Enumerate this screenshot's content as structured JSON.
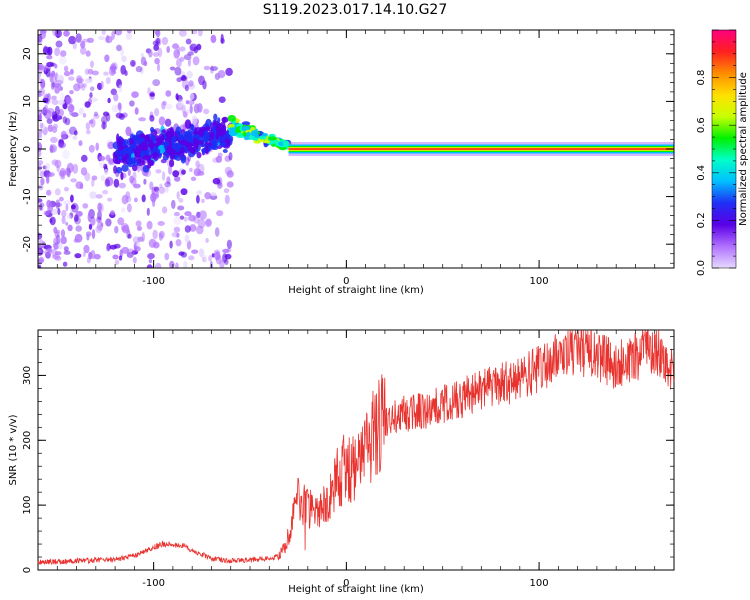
{
  "figure": {
    "title": "S119.2023.017.14.10.G27"
  },
  "chart_data": [
    {
      "type": "heatmap",
      "xlabel": "Height of straight line (km)",
      "ylabel": "Frequency (Hz)",
      "xlim": [
        -160,
        170
      ],
      "ylim": [
        -25,
        25
      ],
      "xticks": [
        -100,
        0,
        100
      ],
      "yticks": [
        -20,
        -10,
        0,
        10,
        20
      ],
      "grid": false,
      "colorbar": {
        "label": "Normalized spectral amplitude",
        "range": [
          0,
          1
        ],
        "ticks": [
          "0.0",
          "0.2",
          "0.4",
          "0.6",
          "0.8"
        ],
        "colormap": [
          "#e6d9ff",
          "#b070ff",
          "#5a00e6",
          "#1f2ff5",
          "#00bfff",
          "#00ffc8",
          "#00f000",
          "#c8ff00",
          "#ffe000",
          "#ff8c00",
          "#ff2020",
          "#ff0080"
        ]
      },
      "features": [
        {
          "x_range": [
            -160,
            -60
          ],
          "frequency_range": [
            -25,
            25
          ],
          "amplitude": 0.1,
          "pattern": "scattered noise"
        },
        {
          "x_range": [
            -120,
            -60
          ],
          "frequency_range": [
            -5,
            10
          ],
          "amplitude": 0.2,
          "pattern": "band rising with height"
        },
        {
          "x_range": [
            -60,
            -30
          ],
          "frequency_range": [
            0,
            8
          ],
          "amplitude": 0.4,
          "pattern": "band converging to 0 Hz"
        },
        {
          "x_range": [
            -30,
            170
          ],
          "frequency_range": [
            -1,
            1
          ],
          "amplitude": 0.9,
          "pattern": "narrow line at 0 Hz"
        }
      ]
    },
    {
      "type": "line",
      "xlabel": "Height of straight line (km)",
      "ylabel": "SNR (10 * v/v)",
      "xlim": [
        -160,
        170
      ],
      "ylim": [
        0,
        370
      ],
      "xticks": [
        -100,
        0,
        100
      ],
      "yticks": [
        0,
        100,
        200,
        300
      ],
      "grid": false,
      "series": [
        {
          "color": "#e8322e",
          "x": [
            -160,
            -140,
            -120,
            -110,
            -100,
            -95,
            -85,
            -80,
            -70,
            -60,
            -50,
            -40,
            -35,
            -30,
            -25,
            -20,
            -15,
            -10,
            -5,
            0,
            5,
            10,
            15,
            20,
            30,
            40,
            50,
            60,
            70,
            80,
            90,
            100,
            110,
            120,
            130,
            140,
            150,
            160,
            165,
            170
          ],
          "values": [
            12,
            14,
            16,
            22,
            35,
            40,
            38,
            30,
            18,
            14,
            15,
            18,
            20,
            50,
            110,
            95,
            85,
            110,
            140,
            160,
            150,
            190,
            210,
            230,
            240,
            245,
            255,
            265,
            280,
            285,
            295,
            310,
            330,
            340,
            330,
            315,
            330,
            340,
            330,
            300
          ]
        }
      ]
    }
  ]
}
